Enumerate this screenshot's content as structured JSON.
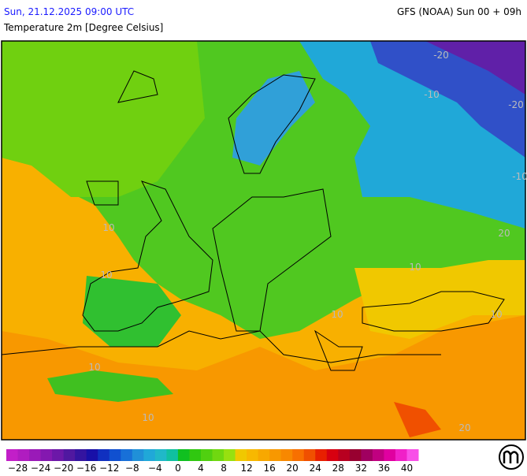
{
  "header": {
    "datetime": "Sun, 21.12.2025 09:00 UTC",
    "model": "GFS (NOAA) Sun 00 + 09h",
    "title": "Temperature 2m [Degree Celsius]"
  },
  "map": {
    "contour_labels": [
      "-20",
      "-20",
      "-10",
      "-10",
      "10",
      "10",
      "10",
      "10",
      "10",
      "10",
      "10",
      "20",
      "20"
    ]
  },
  "colorbar": {
    "colors": [
      "#c21fc8",
      "#b01cc0",
      "#9a1ab8",
      "#8418b0",
      "#6c18a8",
      "#5018a0",
      "#3414a0",
      "#1810a8",
      "#1030c0",
      "#1050d0",
      "#1870d8",
      "#2090d8",
      "#20a8d8",
      "#20b8c8",
      "#10c0a0",
      "#10c020",
      "#30c810",
      "#50d010",
      "#70d810",
      "#98e010",
      "#f0c800",
      "#f8b800",
      "#f8a800",
      "#f89800",
      "#f88800",
      "#f87000",
      "#f05000",
      "#e82000",
      "#d80010",
      "#b80020",
      "#980030",
      "#a00060",
      "#c00080",
      "#e000a0",
      "#f020c8",
      "#f850e8"
    ],
    "labels": [
      "−28",
      "−24",
      "−20",
      "−16",
      "−12",
      "−8",
      "−4",
      "0",
      "4",
      "8",
      "12",
      "16",
      "20",
      "24",
      "28",
      "32",
      "36",
      "40"
    ]
  }
}
